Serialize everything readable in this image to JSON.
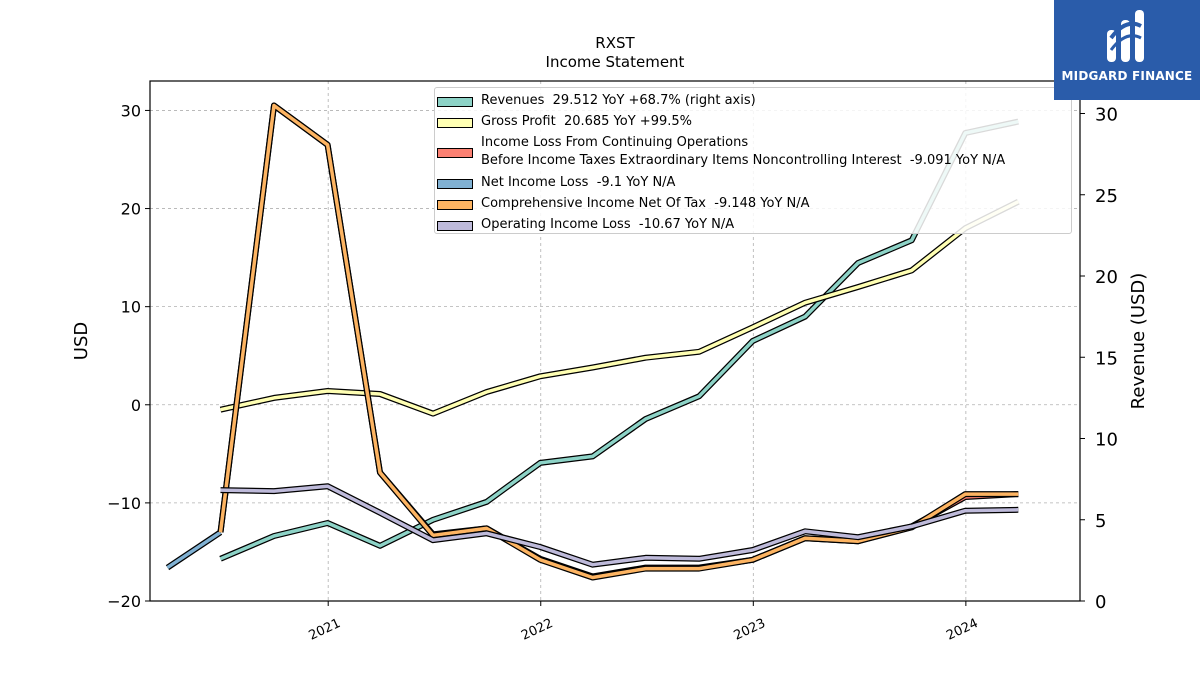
{
  "brand": {
    "name": "MIDGARD FINANCE"
  },
  "chart_data": {
    "type": "line",
    "title": "RXST",
    "subtitle": "Income Statement",
    "ylabel": "USD",
    "ylabel_right": "Revenue (USD)",
    "ylim": [
      -20,
      33
    ],
    "ylim_right": [
      0,
      32
    ],
    "yticks_left": [
      "30",
      "20",
      "10",
      "0",
      "−10",
      "−20"
    ],
    "yticks_left_values": [
      30,
      20,
      10,
      0,
      -10,
      -20
    ],
    "yticks_right": [
      "30",
      "25",
      "20",
      "15",
      "10",
      "5",
      "0"
    ],
    "yticks_right_values": [
      30,
      25,
      20,
      15,
      10,
      5,
      0
    ],
    "xlim": [
      "2020-03-01",
      "2024-07-15"
    ],
    "xticks": [
      "2021",
      "2022",
      "2023",
      "2024"
    ],
    "xticks_dates": [
      "2021-01-01",
      "2022-01-01",
      "2023-01-01",
      "2024-01-01"
    ],
    "grid": true,
    "legend_position": "top-right",
    "series": [
      {
        "name": "Revenues  29.512 YoY +68.7% (right axis)",
        "axis": "right",
        "color": "#8dd3c7",
        "x": [
          "2020-06-30",
          "2020-09-30",
          "2020-12-31",
          "2021-03-31",
          "2021-06-30",
          "2021-09-30",
          "2021-12-31",
          "2022-03-31",
          "2022-06-30",
          "2022-09-30",
          "2022-12-31",
          "2023-03-31",
          "2023-06-30",
          "2023-09-30",
          "2023-12-31",
          "2024-03-31"
        ],
        "values": [
          2.6,
          4.0,
          4.8,
          3.4,
          5.0,
          6.1,
          8.5,
          8.9,
          11.2,
          12.6,
          16.0,
          17.5,
          20.8,
          22.2,
          28.8,
          29.5
        ]
      },
      {
        "name": "Gross Profit  20.685 YoY +99.5%",
        "axis": "left",
        "color": "#ffffb3",
        "x": [
          "2020-06-30",
          "2020-09-30",
          "2020-12-31",
          "2021-03-31",
          "2021-06-30",
          "2021-09-30",
          "2021-12-31",
          "2022-03-31",
          "2022-06-30",
          "2022-09-30",
          "2022-12-31",
          "2023-03-31",
          "2023-06-30",
          "2023-09-30",
          "2023-12-31",
          "2024-03-31"
        ],
        "values": [
          -0.5,
          0.7,
          1.4,
          1.1,
          -0.9,
          1.3,
          2.9,
          3.8,
          4.8,
          5.4,
          7.9,
          10.4,
          12.0,
          13.7,
          18.0,
          20.7
        ]
      },
      {
        "name": "Income Loss From Continuing Operations\nBefore Income Taxes Extraordinary Items Noncontrolling Interest  -9.091 YoY N/A",
        "axis": "left",
        "color": "#fb8072",
        "x": [
          "2020-06-30",
          "2020-09-30",
          "2020-12-31",
          "2021-03-31",
          "2021-06-30",
          "2021-09-30",
          "2021-12-31",
          "2022-03-31",
          "2022-06-30",
          "2022-09-30",
          "2022-12-31",
          "2023-03-31",
          "2023-06-30",
          "2023-09-30",
          "2023-12-31",
          "2024-03-31"
        ],
        "values": [
          -13.0,
          30.5,
          26.5,
          -6.9,
          -13.2,
          -12.6,
          -15.7,
          -17.5,
          -16.6,
          -16.6,
          -15.8,
          -13.6,
          -13.9,
          -12.4,
          -9.4,
          -9.1
        ]
      },
      {
        "name": "Net Income Loss  -9.1 YoY N/A",
        "axis": "left",
        "color": "#80b1d3",
        "x": [
          "2020-03-31",
          "2020-06-30"
        ],
        "values": [
          -16.6,
          -13.0
        ]
      },
      {
        "name": "Comprehensive Income Net Of Tax  -9.148 YoY N/A",
        "axis": "left",
        "color": "#fdb462",
        "x": [
          "2020-06-30",
          "2020-09-30",
          "2020-12-31",
          "2021-03-31",
          "2021-06-30",
          "2021-09-30",
          "2021-12-31",
          "2022-03-31",
          "2022-06-30",
          "2022-09-30",
          "2022-12-31",
          "2023-03-31",
          "2023-06-30",
          "2023-09-30",
          "2023-12-31",
          "2024-03-31"
        ],
        "values": [
          -13.0,
          30.5,
          26.5,
          -6.9,
          -13.3,
          -12.6,
          -15.8,
          -17.6,
          -16.7,
          -16.7,
          -15.8,
          -13.6,
          -13.9,
          -12.5,
          -9.1,
          -9.1
        ]
      },
      {
        "name": "Operating Income Loss  -10.67 YoY N/A",
        "axis": "left",
        "color": "#bebada",
        "x": [
          "2020-06-30",
          "2020-09-30",
          "2020-12-31",
          "2021-03-31",
          "2021-06-30",
          "2021-09-30",
          "2021-12-31",
          "2022-03-31",
          "2022-06-30",
          "2022-09-30",
          "2022-12-31",
          "2023-03-31",
          "2023-06-30",
          "2023-09-30",
          "2023-12-31",
          "2024-03-31"
        ],
        "values": [
          -8.7,
          -8.8,
          -8.3,
          -11.0,
          -13.8,
          -13.1,
          -14.5,
          -16.3,
          -15.6,
          -15.7,
          -14.8,
          -12.9,
          -13.5,
          -12.4,
          -10.8,
          -10.7
        ]
      }
    ]
  }
}
